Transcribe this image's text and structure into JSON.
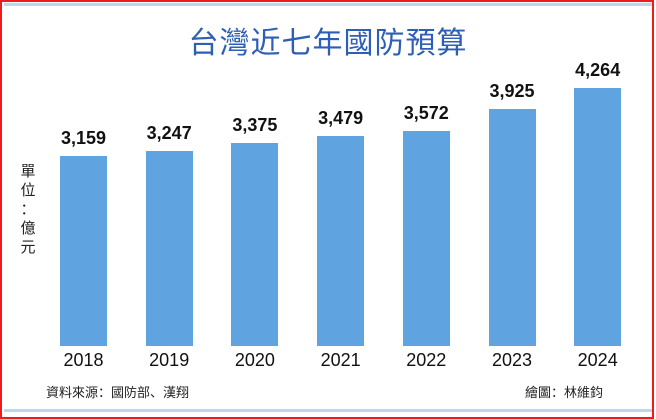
{
  "title": "台灣近七年國防預算",
  "unit_label": [
    "單",
    "位",
    "：",
    "億",
    "元"
  ],
  "footer": {
    "source": "資料來源：國防部、漢翔",
    "credit": "繪圖：林維鈞"
  },
  "colors": {
    "bar": "#5fa3e0",
    "title": "#2d5fb5",
    "frame": "#ee1c1c"
  },
  "chart_data": {
    "type": "bar",
    "title": "台灣近七年國防預算",
    "xlabel": "",
    "ylabel": "單位：億元",
    "categories": [
      "2018",
      "2019",
      "2020",
      "2021",
      "2022",
      "2023",
      "2024"
    ],
    "values": [
      3159,
      3247,
      3375,
      3479,
      3572,
      3925,
      4264
    ],
    "value_labels": [
      "3,159",
      "3,247",
      "3,375",
      "3,479",
      "3,572",
      "3,925",
      "4,264"
    ],
    "grid": false,
    "legend": "none",
    "source": "資料來源：國防部、漢翔",
    "credit": "繪圖：林維鈞"
  }
}
